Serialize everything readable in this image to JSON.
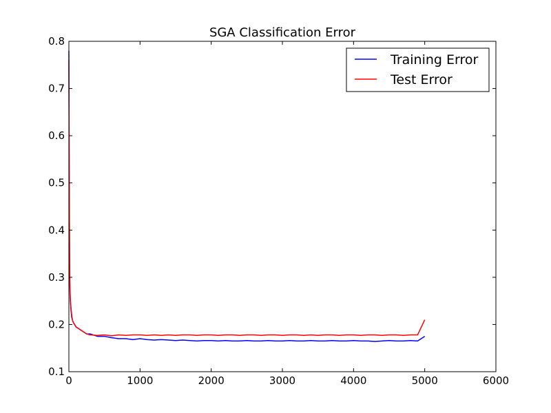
{
  "chart_data": {
    "type": "line",
    "title": "SGA Classification Error",
    "xlabel": "",
    "ylabel": "",
    "xlim": [
      0,
      6000
    ],
    "ylim": [
      0.1,
      0.8
    ],
    "xticks": [
      0,
      1000,
      2000,
      3000,
      4000,
      5000,
      6000
    ],
    "xtick_labels": [
      "0",
      "1000",
      "2000",
      "3000",
      "4000",
      "5000",
      "6000"
    ],
    "yticks": [
      0.1,
      0.2,
      0.3,
      0.4,
      0.5,
      0.6,
      0.7,
      0.8
    ],
    "ytick_labels": [
      "0.1",
      "0.2",
      "0.3",
      "0.4",
      "0.5",
      "0.6",
      "0.7",
      "0.8"
    ],
    "grid": false,
    "legend_position": "top-right",
    "series": [
      {
        "name": "Training Error",
        "color": "#0000ff",
        "x": [
          0,
          5,
          10,
          15,
          20,
          30,
          40,
          50,
          60,
          80,
          100,
          150,
          200,
          250,
          300,
          400,
          500,
          600,
          700,
          800,
          900,
          1000,
          1100,
          1200,
          1300,
          1400,
          1500,
          1600,
          1700,
          1800,
          1900,
          2000,
          2100,
          2200,
          2300,
          2400,
          2500,
          2600,
          2700,
          2800,
          2900,
          3000,
          3100,
          3200,
          3300,
          3400,
          3500,
          3600,
          3700,
          3800,
          3900,
          4000,
          4100,
          4200,
          4300,
          4400,
          4500,
          4600,
          4700,
          4800,
          4900,
          5000
        ],
        "y": [
          0.78,
          0.5,
          0.33,
          0.27,
          0.25,
          0.23,
          0.215,
          0.21,
          0.205,
          0.2,
          0.195,
          0.19,
          0.185,
          0.18,
          0.18,
          0.175,
          0.175,
          0.172,
          0.17,
          0.17,
          0.168,
          0.17,
          0.168,
          0.167,
          0.168,
          0.167,
          0.166,
          0.167,
          0.166,
          0.165,
          0.166,
          0.166,
          0.165,
          0.166,
          0.165,
          0.165,
          0.166,
          0.165,
          0.165,
          0.166,
          0.165,
          0.165,
          0.166,
          0.165,
          0.165,
          0.166,
          0.165,
          0.165,
          0.166,
          0.165,
          0.165,
          0.166,
          0.165,
          0.165,
          0.164,
          0.165,
          0.166,
          0.165,
          0.165,
          0.166,
          0.165,
          0.175
        ]
      },
      {
        "name": "Test Error",
        "color": "#ff0000",
        "x": [
          0,
          5,
          10,
          15,
          20,
          30,
          40,
          50,
          60,
          80,
          100,
          150,
          200,
          250,
          300,
          400,
          500,
          600,
          700,
          800,
          900,
          1000,
          1100,
          1200,
          1300,
          1400,
          1500,
          1600,
          1700,
          1800,
          1900,
          2000,
          2100,
          2200,
          2300,
          2400,
          2500,
          2600,
          2700,
          2800,
          2900,
          3000,
          3100,
          3200,
          3300,
          3400,
          3500,
          3600,
          3700,
          3800,
          3900,
          4000,
          4100,
          4200,
          4300,
          4400,
          4500,
          4600,
          4700,
          4800,
          4900,
          5000
        ],
        "y": [
          0.76,
          0.52,
          0.35,
          0.28,
          0.255,
          0.235,
          0.22,
          0.21,
          0.205,
          0.2,
          0.195,
          0.19,
          0.185,
          0.18,
          0.178,
          0.177,
          0.178,
          0.176,
          0.178,
          0.177,
          0.178,
          0.178,
          0.177,
          0.178,
          0.177,
          0.178,
          0.177,
          0.178,
          0.178,
          0.177,
          0.178,
          0.178,
          0.177,
          0.178,
          0.178,
          0.177,
          0.178,
          0.178,
          0.177,
          0.178,
          0.178,
          0.177,
          0.178,
          0.178,
          0.177,
          0.178,
          0.177,
          0.178,
          0.178,
          0.177,
          0.178,
          0.178,
          0.177,
          0.178,
          0.178,
          0.177,
          0.178,
          0.178,
          0.177,
          0.178,
          0.178,
          0.21
        ]
      }
    ]
  }
}
